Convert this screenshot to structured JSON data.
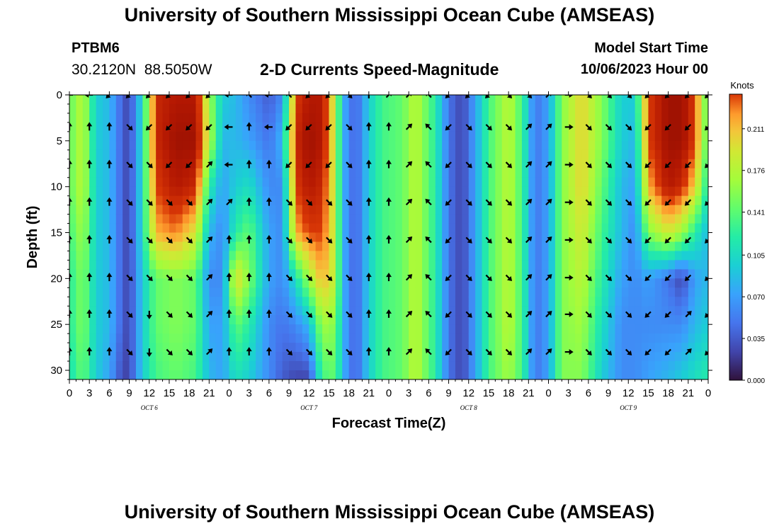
{
  "header": {
    "title": "University of Southern Mississippi Ocean Cube (AMSEAS)",
    "station": "PTBM6",
    "coords": "30.2120N  88.5050W",
    "subtitle": "2-D Currents Speed-Magnitude",
    "model_start_label": "Model Start Time",
    "model_start_value": "10/06/2023 Hour 00"
  },
  "footer": {
    "title": "University of Southern Mississippi Ocean Cube (AMSEAS)"
  },
  "chart_data": {
    "type": "heatmap",
    "title": "2-D Currents Speed-Magnitude",
    "xlabel": "Forecast Time(Z)",
    "ylabel": "Depth (ft)",
    "x_hours": [
      0,
      96
    ],
    "ylim": [
      0,
      31
    ],
    "x_tick_labels": [
      "0",
      "3",
      "6",
      "9",
      "12",
      "15",
      "18",
      "21",
      "0",
      "3",
      "6",
      "9",
      "12",
      "15",
      "18",
      "21",
      "0",
      "3",
      "6",
      "9",
      "12",
      "15",
      "18",
      "21",
      "0",
      "3",
      "6",
      "9",
      "12",
      "15",
      "18",
      "21",
      "0"
    ],
    "y_ticks": [
      0,
      5,
      10,
      15,
      20,
      25,
      30
    ],
    "y_tick_labels": [
      "0",
      "5",
      "10",
      "15",
      "20",
      "25",
      "30"
    ],
    "day_labels": [
      {
        "label": "OCT  6",
        "hour": 12
      },
      {
        "label": "OCT  7",
        "hour": 36
      },
      {
        "label": "OCT  8",
        "hour": 60
      },
      {
        "label": "OCT  9",
        "hour": 84
      }
    ],
    "colorbar": {
      "unit": "Knots",
      "min": 0,
      "max": 0.24,
      "tick_values": [
        0.0,
        0.035,
        0.07,
        0.105,
        0.141,
        0.176,
        0.211
      ],
      "tick_labels": [
        "0.000",
        "0.035",
        "0.070",
        "0.105",
        "0.141",
        "0.176",
        "0.211"
      ]
    },
    "profile_depths_ft": [
      0,
      5,
      10,
      15,
      20,
      25,
      31
    ],
    "column_speed_profiles_knots": [
      {
        "hour": 0,
        "speeds": [
          0.12,
          0.12,
          0.12,
          0.11,
          0.1,
          0.1,
          0.09
        ]
      },
      {
        "hour": 2,
        "speeds": [
          0.15,
          0.15,
          0.15,
          0.14,
          0.13,
          0.13,
          0.12
        ]
      },
      {
        "hour": 4,
        "speeds": [
          0.08,
          0.08,
          0.08,
          0.08,
          0.08,
          0.08,
          0.08
        ]
      },
      {
        "hour": 6,
        "speeds": [
          0.07,
          0.07,
          0.07,
          0.07,
          0.07,
          0.07,
          0.06
        ]
      },
      {
        "hour": 8,
        "speeds": [
          0.03,
          0.03,
          0.03,
          0.03,
          0.03,
          0.03,
          0.02
        ]
      },
      {
        "hour": 9,
        "speeds": [
          0.02,
          0.02,
          0.02,
          0.02,
          0.02,
          0.02,
          0.02
        ]
      },
      {
        "hour": 11,
        "speeds": [
          0.09,
          0.09,
          0.09,
          0.09,
          0.08,
          0.08,
          0.08
        ]
      },
      {
        "hour": 13,
        "speeds": [
          0.21,
          0.21,
          0.2,
          0.18,
          0.12,
          0.12,
          0.11
        ]
      },
      {
        "hour": 16,
        "speeds": [
          0.22,
          0.23,
          0.22,
          0.19,
          0.13,
          0.13,
          0.12
        ]
      },
      {
        "hour": 19,
        "speeds": [
          0.22,
          0.23,
          0.21,
          0.16,
          0.12,
          0.12,
          0.11
        ]
      },
      {
        "hour": 21,
        "speeds": [
          0.14,
          0.15,
          0.1,
          0.07,
          0.05,
          0.06,
          0.07
        ]
      },
      {
        "hour": 23,
        "speeds": [
          0.08,
          0.07,
          0.06,
          0.05,
          0.05,
          0.06,
          0.06
        ]
      },
      {
        "hour": 25,
        "speeds": [
          0.07,
          0.07,
          0.08,
          0.1,
          0.17,
          0.12,
          0.09
        ]
      },
      {
        "hour": 27,
        "speeds": [
          0.05,
          0.06,
          0.09,
          0.12,
          0.13,
          0.1,
          0.08
        ]
      },
      {
        "hour": 30,
        "speeds": [
          0.03,
          0.04,
          0.05,
          0.06,
          0.06,
          0.05,
          0.05
        ]
      },
      {
        "hour": 32,
        "speeds": [
          0.05,
          0.07,
          0.05,
          0.05,
          0.05,
          0.04,
          0.03
        ]
      },
      {
        "hour": 34,
        "speeds": [
          0.2,
          0.21,
          0.2,
          0.18,
          0.09,
          0.05,
          0.02
        ]
      },
      {
        "hour": 36,
        "speeds": [
          0.22,
          0.23,
          0.22,
          0.2,
          0.14,
          0.07,
          0.02
        ]
      },
      {
        "hour": 38,
        "speeds": [
          0.22,
          0.22,
          0.21,
          0.2,
          0.18,
          0.14,
          0.11
        ]
      },
      {
        "hour": 40,
        "speeds": [
          0.15,
          0.15,
          0.15,
          0.15,
          0.15,
          0.13,
          0.12
        ]
      },
      {
        "hour": 41,
        "speeds": [
          0.07,
          0.07,
          0.07,
          0.07,
          0.07,
          0.07,
          0.07
        ]
      },
      {
        "hour": 43,
        "speeds": [
          0.03,
          0.03,
          0.03,
          0.03,
          0.03,
          0.03,
          0.03
        ]
      },
      {
        "hour": 45,
        "speeds": [
          0.08,
          0.08,
          0.08,
          0.08,
          0.08,
          0.08,
          0.08
        ]
      },
      {
        "hour": 47,
        "speeds": [
          0.11,
          0.11,
          0.11,
          0.11,
          0.11,
          0.11,
          0.11
        ]
      },
      {
        "hour": 50,
        "speeds": [
          0.12,
          0.12,
          0.12,
          0.12,
          0.12,
          0.12,
          0.12
        ]
      },
      {
        "hour": 52,
        "speeds": [
          0.15,
          0.15,
          0.15,
          0.15,
          0.15,
          0.15,
          0.15
        ]
      },
      {
        "hour": 55,
        "speeds": [
          0.1,
          0.1,
          0.1,
          0.1,
          0.1,
          0.1,
          0.1
        ]
      },
      {
        "hour": 57,
        "speeds": [
          0.04,
          0.04,
          0.04,
          0.04,
          0.04,
          0.04,
          0.04
        ]
      },
      {
        "hour": 59,
        "speeds": [
          0.02,
          0.02,
          0.02,
          0.02,
          0.02,
          0.02,
          0.02
        ]
      },
      {
        "hour": 61,
        "speeds": [
          0.06,
          0.06,
          0.06,
          0.06,
          0.06,
          0.06,
          0.06
        ]
      },
      {
        "hour": 63,
        "speeds": [
          0.11,
          0.11,
          0.11,
          0.11,
          0.11,
          0.11,
          0.11
        ]
      },
      {
        "hour": 66,
        "speeds": [
          0.15,
          0.15,
          0.15,
          0.15,
          0.15,
          0.15,
          0.14
        ]
      },
      {
        "hour": 68,
        "speeds": [
          0.11,
          0.11,
          0.11,
          0.11,
          0.11,
          0.11,
          0.11
        ]
      },
      {
        "hour": 70,
        "speeds": [
          0.04,
          0.04,
          0.04,
          0.04,
          0.04,
          0.04,
          0.04
        ]
      },
      {
        "hour": 72,
        "speeds": [
          0.06,
          0.06,
          0.06,
          0.06,
          0.06,
          0.06,
          0.06
        ]
      },
      {
        "hour": 74,
        "speeds": [
          0.13,
          0.13,
          0.13,
          0.13,
          0.13,
          0.13,
          0.13
        ]
      },
      {
        "hour": 77,
        "speeds": [
          0.17,
          0.17,
          0.17,
          0.16,
          0.15,
          0.14,
          0.13
        ]
      },
      {
        "hour": 80,
        "speeds": [
          0.13,
          0.13,
          0.12,
          0.11,
          0.1,
          0.09,
          0.08
        ]
      },
      {
        "hour": 83,
        "speeds": [
          0.08,
          0.08,
          0.07,
          0.07,
          0.06,
          0.05,
          0.05
        ]
      },
      {
        "hour": 85,
        "speeds": [
          0.08,
          0.07,
          0.06,
          0.05,
          0.05,
          0.05,
          0.05
        ]
      },
      {
        "hour": 87,
        "speeds": [
          0.2,
          0.2,
          0.18,
          0.13,
          0.06,
          0.05,
          0.06
        ]
      },
      {
        "hour": 90,
        "speeds": [
          0.23,
          0.23,
          0.22,
          0.16,
          0.04,
          0.05,
          0.07
        ]
      },
      {
        "hour": 92,
        "speeds": [
          0.23,
          0.23,
          0.21,
          0.14,
          0.02,
          0.05,
          0.08
        ]
      },
      {
        "hour": 94,
        "speeds": [
          0.2,
          0.2,
          0.17,
          0.1,
          0.06,
          0.07,
          0.09
        ]
      },
      {
        "hour": 96,
        "speeds": [
          0.11,
          0.11,
          0.09,
          0.07,
          0.07,
          0.08,
          0.1
        ]
      }
    ],
    "vector_depths_ft": [
      0,
      3.5,
      7.6,
      11.7,
      15.8,
      19.9,
      23.9,
      28
    ],
    "vector_directions_by_hour": [
      {
        "hour": 0,
        "dirs": [
          "W",
          "N",
          "N",
          "N",
          "N",
          "N",
          "N",
          "N"
        ]
      },
      {
        "hour": 3,
        "dirs": [
          "W",
          "N",
          "N",
          "N",
          "N",
          "N",
          "N",
          "N"
        ]
      },
      {
        "hour": 6,
        "dirs": [
          "SW",
          "N",
          "N",
          "N",
          "N",
          "N",
          "N",
          "N"
        ]
      },
      {
        "hour": 9,
        "dirs": [
          "SW",
          "SE",
          "SE",
          "SE",
          "SE",
          "SE",
          "SE",
          "SE"
        ]
      },
      {
        "hour": 12,
        "dirs": [
          "SW",
          "SW",
          "SE",
          "SE",
          "SE",
          "SE",
          "S",
          "S"
        ]
      },
      {
        "hour": 15,
        "dirs": [
          "SW",
          "SW",
          "SW",
          "SE",
          "SE",
          "SE",
          "SE",
          "SE"
        ]
      },
      {
        "hour": 18,
        "dirs": [
          "SW",
          "SW",
          "SW",
          "SE",
          "SE",
          "SE",
          "SE",
          "SE"
        ]
      },
      {
        "hour": 21,
        "dirs": [
          "SW",
          "SW",
          "NE",
          "NE",
          "NE",
          "NE",
          "NE",
          "NE"
        ]
      },
      {
        "hour": 24,
        "dirs": [
          "W",
          "W",
          "W",
          "NE",
          "N",
          "N",
          "N",
          "N"
        ]
      },
      {
        "hour": 27,
        "dirs": [
          "NW",
          "N",
          "N",
          "N",
          "N",
          "N",
          "N",
          "N"
        ]
      },
      {
        "hour": 30,
        "dirs": [
          "W",
          "W",
          "N",
          "N",
          "N",
          "N",
          "N",
          "N"
        ]
      },
      {
        "hour": 33,
        "dirs": [
          "NW",
          "SW",
          "SW",
          "SE",
          "SE",
          "SE",
          "SE",
          "SE"
        ]
      },
      {
        "hour": 36,
        "dirs": [
          "SW",
          "SW",
          "SW",
          "SE",
          "SE",
          "SE",
          "SE",
          "SE"
        ]
      },
      {
        "hour": 39,
        "dirs": [
          "SW",
          "SW",
          "SW",
          "SE",
          "SE",
          "SE",
          "SE",
          "SE"
        ]
      },
      {
        "hour": 42,
        "dirs": [
          "SE",
          "SE",
          "SE",
          "SE",
          "SE",
          "SE",
          "SE",
          "SE"
        ]
      },
      {
        "hour": 45,
        "dirs": [
          "N",
          "N",
          "N",
          "N",
          "N",
          "N",
          "N",
          "N"
        ]
      },
      {
        "hour": 48,
        "dirs": [
          "NE",
          "N",
          "N",
          "N",
          "N",
          "N",
          "N",
          "N"
        ]
      },
      {
        "hour": 51,
        "dirs": [
          "NE",
          "NE",
          "NE",
          "NE",
          "NE",
          "NE",
          "NE",
          "NE"
        ]
      },
      {
        "hour": 54,
        "dirs": [
          "NW",
          "NW",
          "NW",
          "NW",
          "NW",
          "NW",
          "NW",
          "NW"
        ]
      },
      {
        "hour": 57,
        "dirs": [
          "SW",
          "SW",
          "SW",
          "SW",
          "SW",
          "SW",
          "SW",
          "SW"
        ]
      },
      {
        "hour": 60,
        "dirs": [
          "SW",
          "SE",
          "SE",
          "SE",
          "SE",
          "SE",
          "SE",
          "SE"
        ]
      },
      {
        "hour": 63,
        "dirs": [
          "SW",
          "SE",
          "SE",
          "SE",
          "SE",
          "SE",
          "SE",
          "SE"
        ]
      },
      {
        "hour": 66,
        "dirs": [
          "SE",
          "SE",
          "SE",
          "SE",
          "SE",
          "SE",
          "SE",
          "SE"
        ]
      },
      {
        "hour": 69,
        "dirs": [
          "SE",
          "NE",
          "NE",
          "NE",
          "NE",
          "NE",
          "NE",
          "NE"
        ]
      },
      {
        "hour": 72,
        "dirs": [
          "NE",
          "NE",
          "NE",
          "NE",
          "NE",
          "NE",
          "NE",
          "NE"
        ]
      },
      {
        "hour": 75,
        "dirs": [
          "E",
          "E",
          "E",
          "E",
          "E",
          "E",
          "E",
          "E"
        ]
      },
      {
        "hour": 78,
        "dirs": [
          "SE",
          "SE",
          "SE",
          "SE",
          "SE",
          "SE",
          "SE",
          "SE"
        ]
      },
      {
        "hour": 81,
        "dirs": [
          "SE",
          "SE",
          "SE",
          "SE",
          "SE",
          "SE",
          "SE",
          "SE"
        ]
      },
      {
        "hour": 84,
        "dirs": [
          "SE",
          "SE",
          "SE",
          "SE",
          "SE",
          "SE",
          "SE",
          "SE"
        ]
      },
      {
        "hour": 87,
        "dirs": [
          "SW",
          "SW",
          "SW",
          "SW",
          "SW",
          "SW",
          "SW",
          "SW"
        ]
      },
      {
        "hour": 90,
        "dirs": [
          "SW",
          "SW",
          "SW",
          "SW",
          "SW",
          "SW",
          "SW",
          "SW"
        ]
      },
      {
        "hour": 93,
        "dirs": [
          "SW",
          "SW",
          "SW",
          "SW",
          "SW",
          "SW",
          "NE",
          "NE"
        ]
      },
      {
        "hour": 96,
        "dirs": [
          "SW",
          "SW",
          "SW",
          "SW",
          "SW",
          "SW",
          "SW",
          "SW"
        ]
      }
    ]
  }
}
